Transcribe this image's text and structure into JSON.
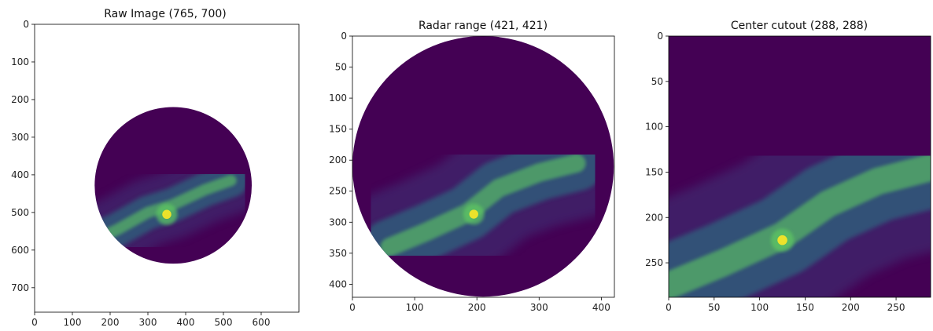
{
  "chart_data": [
    {
      "type": "heatmap",
      "title": "Raw Image (765, 700)",
      "xlabel": "",
      "ylabel": "",
      "shape": [
        765,
        700
      ],
      "xlim": [
        0,
        700
      ],
      "ylim": [
        765,
        0
      ],
      "x_ticks": [
        0,
        100,
        200,
        300,
        400,
        500,
        600
      ],
      "y_ticks": [
        0,
        100,
        200,
        300,
        400,
        500,
        600,
        700
      ],
      "circle": {
        "cx": 367,
        "cy": 428,
        "r": 208
      },
      "band": [
        [
          155,
          575
        ],
        [
          220,
          545
        ],
        [
          300,
          500
        ],
        [
          365,
          480
        ],
        [
          450,
          440
        ],
        [
          520,
          415
        ]
      ],
      "hotspot": {
        "x": 350,
        "y": 505,
        "r": 20
      },
      "colormap": "viridis",
      "grid": false
    },
    {
      "type": "heatmap",
      "title": "Radar range (421, 421)",
      "xlabel": "",
      "ylabel": "",
      "shape": [
        421,
        421
      ],
      "xlim": [
        0,
        421
      ],
      "ylim": [
        421,
        0
      ],
      "x_ticks": [
        0,
        100,
        200,
        300,
        400
      ],
      "y_ticks": [
        0,
        50,
        100,
        150,
        200,
        250,
        300,
        350,
        400
      ],
      "circle": {
        "cx": 210,
        "cy": 210,
        "r": 210
      },
      "band": [
        [
          60,
          340
        ],
        [
          120,
          315
        ],
        [
          185,
          285
        ],
        [
          235,
          245
        ],
        [
          300,
          220
        ],
        [
          360,
          205
        ]
      ],
      "hotspot": {
        "x": 195,
        "y": 287,
        "r": 12
      },
      "colormap": "viridis",
      "grid": false
    },
    {
      "type": "heatmap",
      "title": "Center cutout (288, 288)",
      "xlabel": "",
      "ylabel": "",
      "shape": [
        288,
        288
      ],
      "xlim": [
        0,
        288
      ],
      "ylim": [
        288,
        0
      ],
      "x_ticks": [
        0,
        50,
        100,
        150,
        200,
        250
      ],
      "y_ticks": [
        0,
        50,
        100,
        150,
        200,
        250
      ],
      "circle": null,
      "band": [
        [
          0,
          275
        ],
        [
          60,
          250
        ],
        [
          125,
          220
        ],
        [
          175,
          185
        ],
        [
          230,
          160
        ],
        [
          288,
          145
        ]
      ],
      "hotspot": {
        "x": 125,
        "y": 225,
        "r": 9
      },
      "colormap": "viridis",
      "grid": false
    }
  ],
  "colors": {
    "background_low": "#440154",
    "mid_low": "#3b528b",
    "mid": "#21918c",
    "mid_high": "#5ec962",
    "high": "#fde725"
  }
}
